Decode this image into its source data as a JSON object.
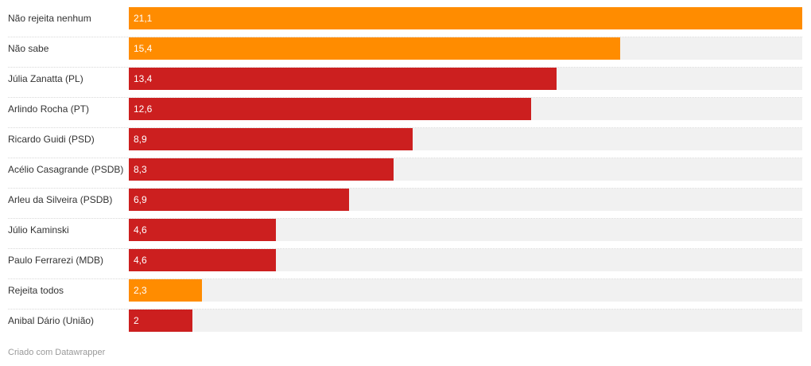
{
  "chart_data": {
    "type": "bar",
    "orientation": "horizontal",
    "xlim": [
      0,
      21.1
    ],
    "colors": {
      "highlight": "#ff8c00",
      "candidate": "#cc1f1f",
      "track": "#f1f1f1"
    },
    "rows": [
      {
        "category": "Não rejeita nenhum",
        "value": 21.1,
        "value_label": "21,1",
        "color": "#ff8c00"
      },
      {
        "category": "Não sabe",
        "value": 15.4,
        "value_label": "15,4",
        "color": "#ff8c00"
      },
      {
        "category": "Júlia Zanatta (PL)",
        "value": 13.4,
        "value_label": "13,4",
        "color": "#cc1f1f"
      },
      {
        "category": "Arlindo Rocha (PT)",
        "value": 12.6,
        "value_label": "12,6",
        "color": "#cc1f1f"
      },
      {
        "category": "Ricardo Guidi (PSD)",
        "value": 8.9,
        "value_label": "8,9",
        "color": "#cc1f1f"
      },
      {
        "category": "Acélio Casagrande (PSDB)",
        "value": 8.3,
        "value_label": "8,3",
        "color": "#cc1f1f"
      },
      {
        "category": "Arleu da Silveira (PSDB)",
        "value": 6.9,
        "value_label": "6,9",
        "color": "#cc1f1f"
      },
      {
        "category": "Júlio Kaminski",
        "value": 4.6,
        "value_label": "4,6",
        "color": "#cc1f1f"
      },
      {
        "category": "Paulo Ferrarezi (MDB)",
        "value": 4.6,
        "value_label": "4,6",
        "color": "#cc1f1f"
      },
      {
        "category": "Rejeita todos",
        "value": 2.3,
        "value_label": "2,3",
        "color": "#ff8c00"
      },
      {
        "category": "Anibal Dário (União)",
        "value": 2,
        "value_label": "2",
        "color": "#cc1f1f"
      }
    ]
  },
  "footer": {
    "credit": "Criado com Datawrapper"
  }
}
